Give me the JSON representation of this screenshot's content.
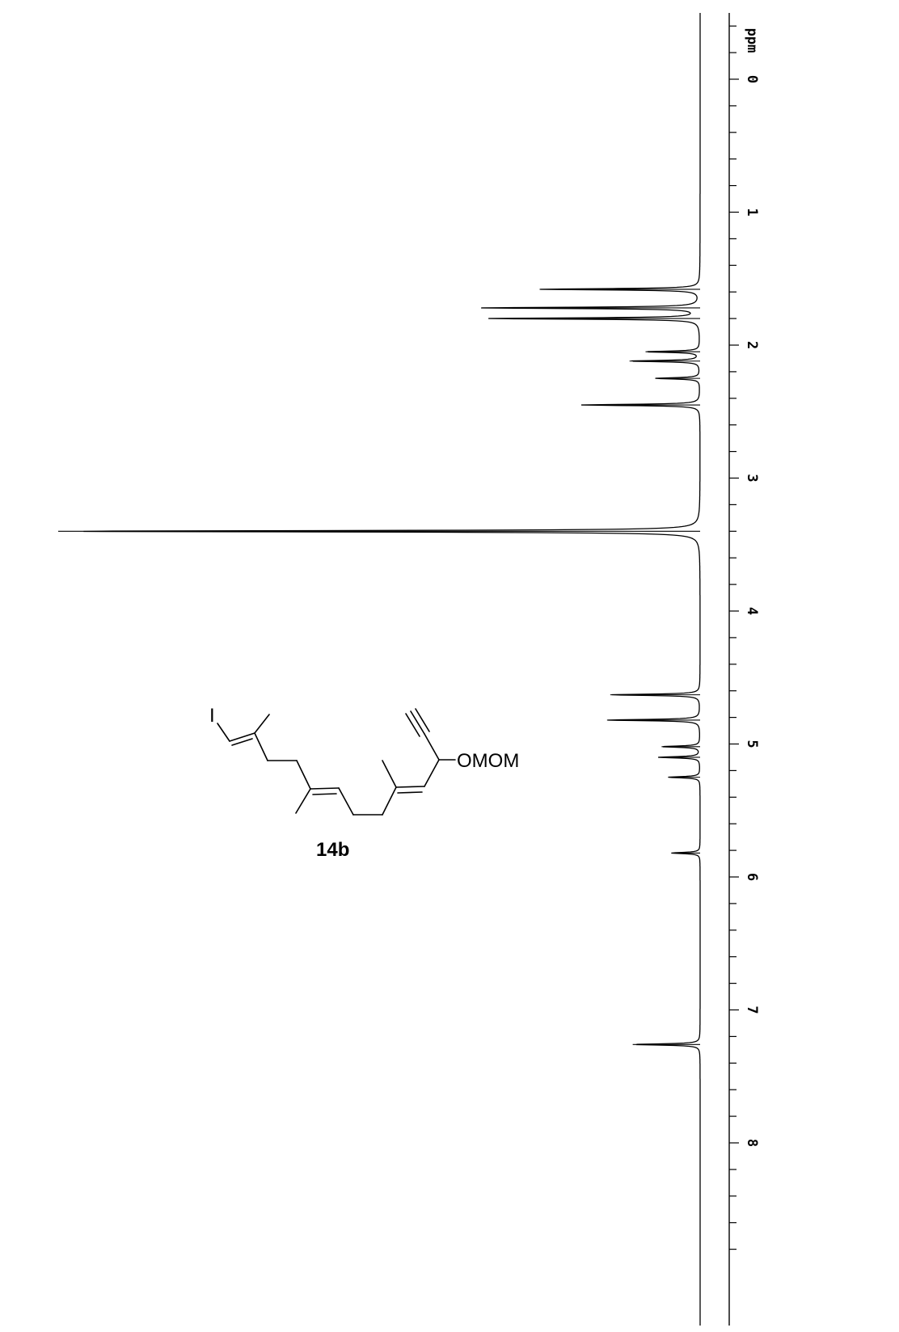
{
  "chart_data": {
    "type": "line",
    "orientation": "rotated-90-clockwise",
    "xlabel": "ppm",
    "ticks": [
      "0",
      "1",
      "2",
      "3",
      "4",
      "5",
      "6",
      "7",
      "8"
    ],
    "tick_values": [
      0,
      1,
      2,
      3,
      4,
      5,
      6,
      7,
      8
    ],
    "xlim": [
      -0.4,
      8.9
    ],
    "peaks": [
      {
        "ppm": 1.58,
        "intensity": 0.25
      },
      {
        "ppm": 1.72,
        "intensity": 0.34
      },
      {
        "ppm": 1.8,
        "intensity": 0.33
      },
      {
        "ppm": 2.05,
        "intensity": 0.085
      },
      {
        "ppm": 2.12,
        "intensity": 0.11
      },
      {
        "ppm": 2.25,
        "intensity": 0.07
      },
      {
        "ppm": 2.45,
        "intensity": 0.185
      },
      {
        "ppm": 3.4,
        "intensity": 1.0
      },
      {
        "ppm": 4.63,
        "intensity": 0.14
      },
      {
        "ppm": 4.82,
        "intensity": 0.145
      },
      {
        "ppm": 5.02,
        "intensity": 0.06
      },
      {
        "ppm": 5.1,
        "intensity": 0.065
      },
      {
        "ppm": 5.25,
        "intensity": 0.05
      },
      {
        "ppm": 5.82,
        "intensity": 0.045
      },
      {
        "ppm": 7.26,
        "intensity": 0.105
      }
    ]
  },
  "structure": {
    "iodo_label": "I",
    "substituent_label": "OMOM",
    "compound_label": "14b"
  }
}
